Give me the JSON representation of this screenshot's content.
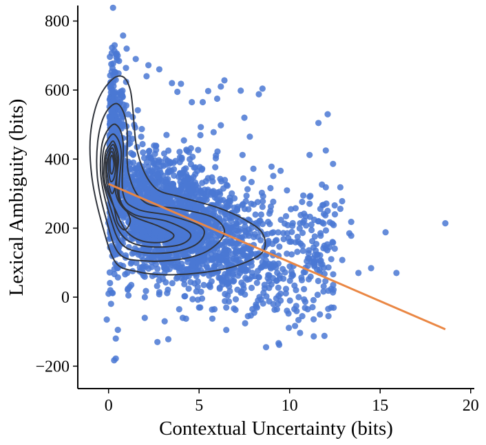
{
  "chart_data": {
    "type": "scatter",
    "xlabel": "Contextual Uncertainty (bits)",
    "ylabel": "Lexical Ambiguity (bits)",
    "xlim": [
      -1.7,
      20.2
    ],
    "ylim": [
      -265,
      845
    ],
    "xticks": [
      0,
      5,
      10,
      15,
      20
    ],
    "yticks": [
      -200,
      0,
      200,
      400,
      600,
      800
    ],
    "xtick_labels": [
      "0",
      "5",
      "10",
      "15",
      "20"
    ],
    "ytick_labels": [
      "−200",
      "0",
      "200",
      "400",
      "600",
      "800"
    ],
    "grid": false,
    "colors": {
      "points": "#4a78d4",
      "fit_line": "#ea8744",
      "contour": "#2f333b"
    },
    "fit_line": {
      "x": [
        0,
        18.6
      ],
      "y": [
        328,
        -93
      ]
    },
    "contours": [
      [
        [
          0.5,
          640
        ],
        [
          1.2,
          600
        ],
        [
          1.6,
          420
        ],
        [
          2.5,
          320
        ],
        [
          4,
          290
        ],
        [
          6,
          260
        ],
        [
          7.5,
          225
        ],
        [
          8.5,
          185
        ],
        [
          8.5,
          130
        ],
        [
          7,
          90
        ],
        [
          5,
          70
        ],
        [
          3,
          65
        ],
        [
          1.5,
          75
        ],
        [
          0.4,
          100
        ],
        [
          -0.3,
          200
        ],
        [
          -0.9,
          340
        ],
        [
          -1,
          470
        ],
        [
          -0.5,
          580
        ]
      ],
      [
        [
          0.5,
          560
        ],
        [
          1,
          500
        ],
        [
          1.1,
          360
        ],
        [
          2,
          275
        ],
        [
          4,
          255
        ],
        [
          5.8,
          230
        ],
        [
          6.4,
          185
        ],
        [
          5.5,
          135
        ],
        [
          4,
          110
        ],
        [
          2,
          105
        ],
        [
          0.6,
          125
        ],
        [
          -0.1,
          220
        ],
        [
          -0.6,
          340
        ],
        [
          -0.6,
          450
        ],
        [
          -0.2,
          530
        ]
      ],
      [
        [
          0.4,
          500
        ],
        [
          0.8,
          450
        ],
        [
          0.8,
          300
        ],
        [
          1.6,
          255
        ],
        [
          3.5,
          235
        ],
        [
          5.2,
          200
        ],
        [
          4.9,
          155
        ],
        [
          3.5,
          130
        ],
        [
          1.8,
          130
        ],
        [
          0.7,
          155
        ],
        [
          0.1,
          230
        ],
        [
          -0.4,
          340
        ],
        [
          -0.4,
          430
        ],
        [
          -0.1,
          480
        ]
      ],
      [
        [
          0.35,
          470
        ],
        [
          0.7,
          420
        ],
        [
          0.6,
          290
        ],
        [
          1.4,
          240
        ],
        [
          3.2,
          220
        ],
        [
          4.5,
          185
        ],
        [
          4.1,
          155
        ],
        [
          2.8,
          145
        ],
        [
          1.4,
          155
        ],
        [
          0.6,
          190
        ],
        [
          0.1,
          260
        ],
        [
          -0.3,
          340
        ],
        [
          -0.3,
          420
        ],
        [
          0,
          460
        ]
      ],
      [
        [
          0.3,
          450
        ],
        [
          0.55,
          400
        ],
        [
          0.4,
          300
        ],
        [
          1.2,
          240
        ],
        [
          2.8,
          205
        ],
        [
          3.6,
          180
        ],
        [
          3.1,
          160
        ],
        [
          1.9,
          162
        ],
        [
          1,
          190
        ],
        [
          0.4,
          250
        ],
        [
          -0.2,
          330
        ],
        [
          -0.2,
          410
        ],
        [
          0.05,
          440
        ]
      ],
      [
        [
          0.3,
          440
        ],
        [
          0.5,
          390
        ],
        [
          0.45,
          330
        ],
        [
          0.6,
          280
        ],
        [
          1,
          250
        ],
        [
          1.2,
          220
        ],
        [
          0.9,
          195
        ],
        [
          0.5,
          215
        ],
        [
          0.3,
          260
        ],
        [
          -0.1,
          330
        ],
        [
          -0.15,
          400
        ],
        [
          0.05,
          430
        ]
      ],
      [
        [
          0.25,
          430
        ],
        [
          0.45,
          380
        ],
        [
          0.4,
          330
        ],
        [
          0.2,
          300
        ],
        [
          0,
          330
        ],
        [
          -0.1,
          380
        ],
        [
          0.05,
          420
        ]
      ],
      [
        [
          0.22,
          420
        ],
        [
          0.38,
          380
        ],
        [
          0.3,
          345
        ],
        [
          0.12,
          335
        ],
        [
          0.02,
          360
        ],
        [
          0,
          395
        ],
        [
          0.08,
          415
        ]
      ],
      [
        [
          0.2,
          410
        ],
        [
          0.3,
          385
        ],
        [
          0.22,
          360
        ],
        [
          0.12,
          360
        ],
        [
          0.08,
          385
        ],
        [
          0.12,
          405
        ]
      ]
    ],
    "outlier_points": [
      [
        0.8,
        758
      ],
      [
        1,
        720
      ],
      [
        0.5,
        700
      ],
      [
        1.5,
        690
      ],
      [
        2.2,
        672
      ],
      [
        2.8,
        660
      ],
      [
        2.1,
        640
      ],
      [
        3.5,
        620
      ],
      [
        4,
        618
      ],
      [
        3.8,
        595
      ],
      [
        5.5,
        597
      ],
      [
        6.4,
        628
      ],
      [
        6.2,
        610
      ],
      [
        7.3,
        598
      ],
      [
        8.5,
        604
      ],
      [
        8.3,
        588
      ],
      [
        6,
        575
      ],
      [
        5.2,
        565
      ],
      [
        4.6,
        565
      ],
      [
        12.1,
        530
      ],
      [
        7.5,
        520
      ],
      [
        6.2,
        498
      ],
      [
        5.8,
        478
      ],
      [
        3.2,
        470
      ],
      [
        7.8,
        465
      ],
      [
        12,
        425
      ],
      [
        11.1,
        412
      ],
      [
        7.4,
        412
      ],
      [
        12.4,
        386
      ],
      [
        9,
        378
      ],
      [
        8,
        372
      ],
      [
        9.5,
        366
      ],
      [
        12,
        318
      ],
      [
        12.8,
        318
      ],
      [
        12.9,
        278
      ],
      [
        12.8,
        256
      ],
      [
        12.1,
        250
      ],
      [
        12.5,
        240
      ],
      [
        11.6,
        220
      ],
      [
        13.4,
        218
      ],
      [
        11.2,
        210
      ],
      [
        13.3,
        185
      ],
      [
        13.4,
        178
      ],
      [
        15.3,
        188
      ],
      [
        18.6,
        214
      ],
      [
        12.4,
        158
      ],
      [
        12.2,
        145
      ],
      [
        12.3,
        110
      ],
      [
        11.3,
        112
      ],
      [
        11.8,
        95
      ],
      [
        11.9,
        85
      ],
      [
        13.8,
        70
      ],
      [
        14.5,
        84
      ],
      [
        15.9,
        70
      ],
      [
        12.3,
        24
      ],
      [
        12.3,
        -30
      ],
      [
        10.5,
        0
      ],
      [
        9.8,
        24
      ],
      [
        9.5,
        -10
      ],
      [
        9.3,
        -35
      ],
      [
        8.7,
        -145
      ],
      [
        6.5,
        -95
      ],
      [
        7.7,
        -55
      ],
      [
        5,
        -30
      ],
      [
        4.1,
        -60
      ],
      [
        3.9,
        -35
      ],
      [
        3.1,
        -70
      ],
      [
        2.7,
        -130
      ],
      [
        3.3,
        -122
      ],
      [
        2,
        -60
      ],
      [
        1.1,
        5
      ],
      [
        0.4,
        -120
      ],
      [
        0.4,
        -178
      ],
      [
        -0.1,
        -65
      ],
      [
        0,
        10
      ],
      [
        0.1,
        20
      ],
      [
        6.5,
        -30
      ],
      [
        8.2,
        -30
      ],
      [
        9.1,
        -20
      ],
      [
        10.7,
        -55
      ],
      [
        11,
        -35
      ]
    ]
  }
}
